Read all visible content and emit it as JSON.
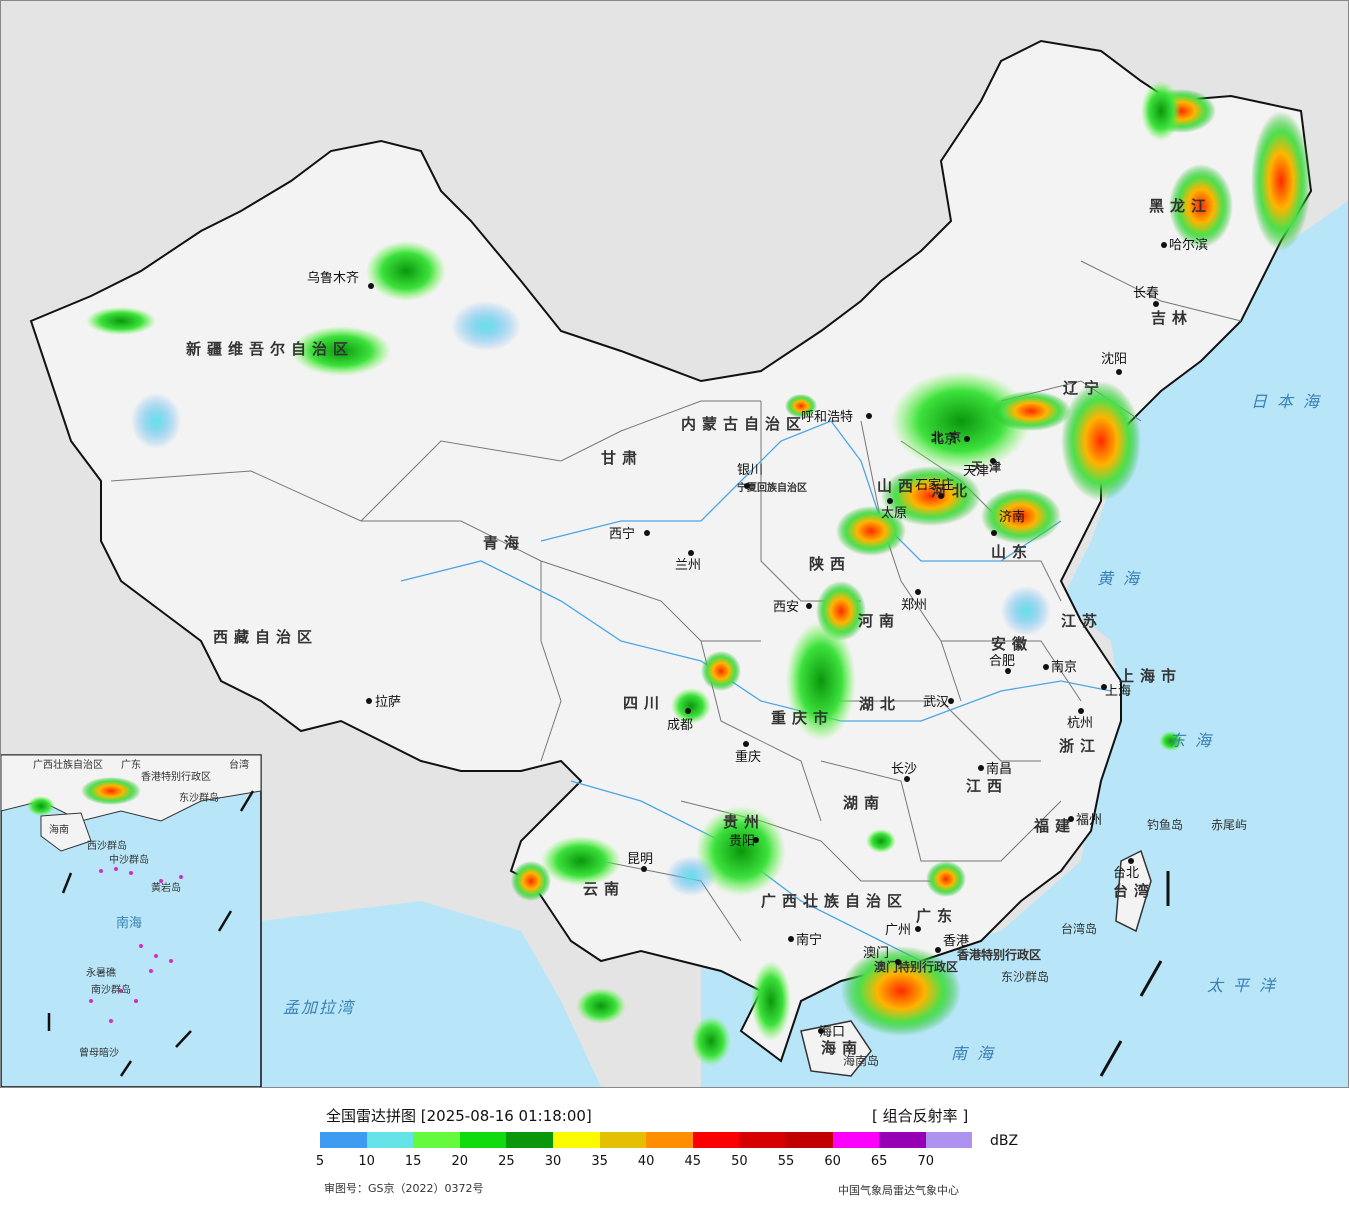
{
  "legend": {
    "title": "全国雷达拼图 [2025-08-16 01:18:00]",
    "product": "[ 组合反射率 ]",
    "unit": "dBZ",
    "ticks": [
      "5",
      "10",
      "15",
      "20",
      "25",
      "30",
      "35",
      "40",
      "45",
      "50",
      "55",
      "60",
      "65",
      "70"
    ],
    "colors": [
      "#3d9bf2",
      "#64e3e9",
      "#66fa3e",
      "#0fdb0f",
      "#0a970c",
      "#fafa00",
      "#e4c100",
      "#ff8f00",
      "#fa0000",
      "#d70000",
      "#c00000",
      "#fb00fb",
      "#9600b4",
      "#ad92ef"
    ],
    "review_number": "审图号：GS京（2022）0372号",
    "source": "中国气象局雷达气象中心"
  },
  "map": {
    "regions": [
      "新疆维吾尔自治区",
      "西藏自治区",
      "青海",
      "甘肃",
      "内蒙古自治区",
      "黑龙江",
      "吉林",
      "辽宁",
      "河北",
      "山西",
      "陕西",
      "宁夏回族自治区",
      "四川",
      "重庆市",
      "云南",
      "贵州",
      "广西壮族自治区",
      "广东",
      "湖南",
      "湖北",
      "河南",
      "山东",
      "江苏",
      "安徽",
      "浙江",
      "江西",
      "福建",
      "台湾",
      "海南",
      "上海市",
      "北京",
      "天津",
      "香港特别行政区",
      "澳门特别行政区"
    ],
    "cities": [
      "乌鲁木齐",
      "拉萨",
      "西宁",
      "兰州",
      "银川",
      "呼和浩特",
      "北京",
      "天津",
      "石家庄",
      "太原",
      "济南",
      "郑州",
      "西安",
      "成都",
      "重庆",
      "贵阳",
      "昆明",
      "南宁",
      "广州",
      "长沙",
      "武汉",
      "合肥",
      "南京",
      "上海",
      "杭州",
      "南昌",
      "福州",
      "台北",
      "海口",
      "哈尔滨",
      "长春",
      "沈阳",
      "香港",
      "澳门"
    ],
    "seas": [
      "日本海",
      "黄海",
      "东海",
      "太平洋",
      "南海",
      "孟加拉湾"
    ],
    "islands": [
      "钓鱼岛",
      "赤尾屿",
      "台湾岛",
      "东沙群岛",
      "海南岛"
    ],
    "inset_labels": [
      "广西壮族自治区",
      "广东",
      "香港特别行政区",
      "台湾",
      "东沙群岛",
      "海南",
      "西沙群岛",
      "中沙群岛",
      "黄岩岛",
      "南海",
      "永暑礁",
      "南沙群岛",
      "曾母暗沙"
    ]
  }
}
